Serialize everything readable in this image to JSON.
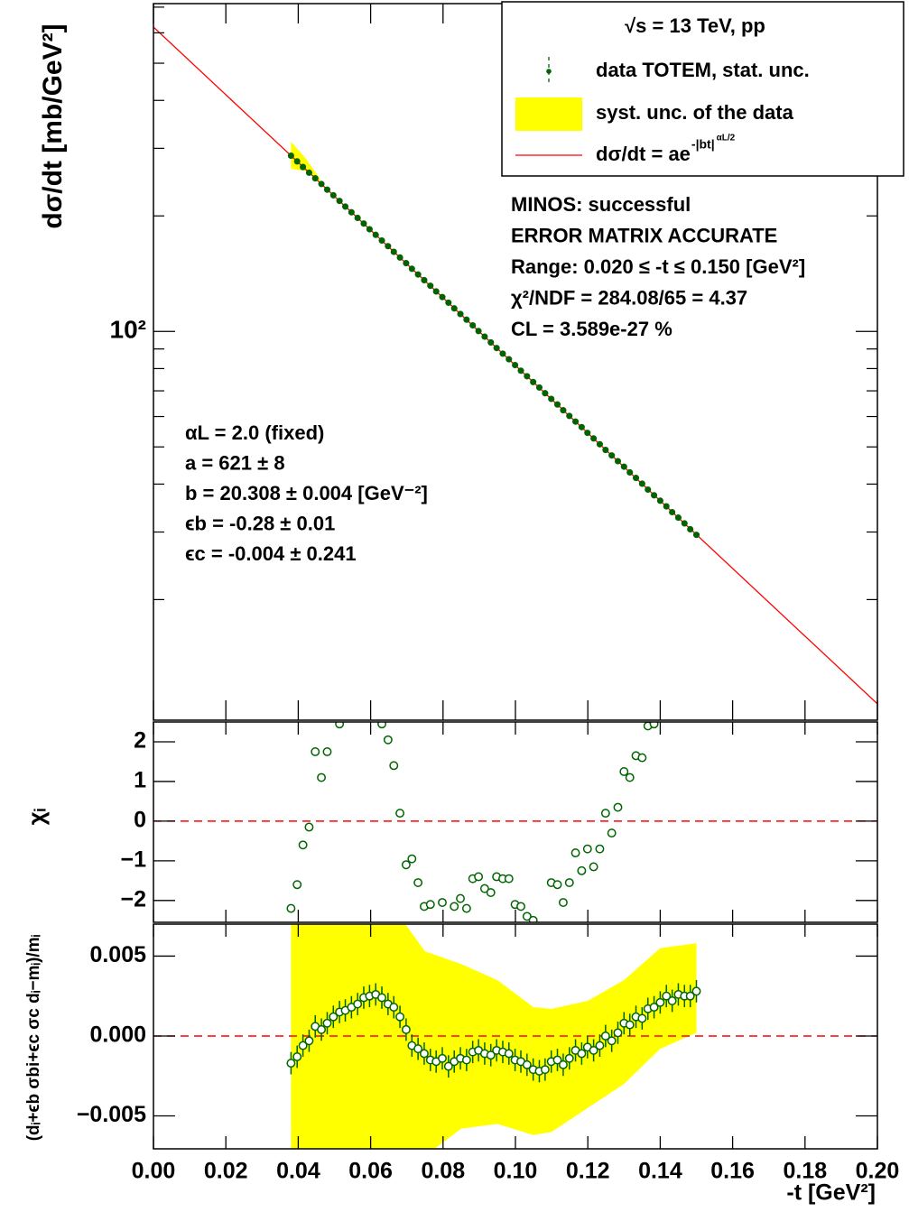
{
  "chart_data": [
    {
      "type": "scatter",
      "ylabel": "dσ/dt [mb/GeV²]",
      "log_y": true,
      "ylim": [
        9.7,
        715
      ],
      "yticks": [
        {
          "value": 100,
          "label": "10²"
        }
      ],
      "yminor": [
        20,
        30,
        40,
        50,
        60,
        70,
        80,
        90,
        200,
        300,
        400,
        500,
        600,
        700
      ],
      "legend": {
        "title": "√s = 13 TeV, pp",
        "position": "upper right"
      },
      "series": [
        {
          "name": "data TOTEM, stat. unc.",
          "type": "scatter",
          "marker": "filled",
          "color": "#006400",
          "x": [
            0.038,
            0.0397,
            0.0413,
            0.043,
            0.0447,
            0.0464,
            0.048,
            0.0497,
            0.0514,
            0.053,
            0.0547,
            0.0564,
            0.0581,
            0.0597,
            0.0614,
            0.0631,
            0.0648,
            0.0664,
            0.0681,
            0.0698,
            0.0714,
            0.0731,
            0.0748,
            0.0765,
            0.0781,
            0.0798,
            0.0815,
            0.0831,
            0.0848,
            0.0865,
            0.0882,
            0.0898,
            0.0915,
            0.0932,
            0.0948,
            0.0965,
            0.0982,
            0.0999,
            0.1015,
            0.1032,
            0.1049,
            0.1066,
            0.1082,
            0.1099,
            0.1116,
            0.1132,
            0.1149,
            0.1166,
            0.1183,
            0.1199,
            0.1216,
            0.1233,
            0.1249,
            0.1266,
            0.1283,
            0.13,
            0.1316,
            0.1333,
            0.135,
            0.1366,
            0.1383,
            0.14,
            0.1417,
            0.1433,
            0.145,
            0.1467,
            0.1483,
            0.15
          ],
          "values": [
            287.0,
            277.4,
            268.2,
            259.2,
            250.6,
            242.2,
            234.1,
            226.3,
            218.8,
            211.5,
            204.4,
            197.6,
            191.0,
            184.6,
            178.5,
            172.5,
            166.8,
            161.2,
            155.8,
            150.6,
            145.6,
            140.7,
            136.0,
            131.5,
            127.1,
            122.9,
            118.8,
            114.8,
            111.0,
            107.3,
            103.7,
            100.2,
            96.9,
            93.6,
            90.5,
            87.5,
            84.6,
            81.7,
            79.0,
            76.4,
            73.8,
            71.4,
            69.0,
            66.7,
            64.5,
            62.3,
            60.2,
            58.2,
            56.3,
            54.4,
            52.6,
            50.8,
            49.1,
            47.5,
            45.9,
            44.4,
            42.9,
            41.5,
            40.1,
            38.7,
            37.4,
            36.2,
            35.0,
            33.8,
            32.7,
            31.6,
            30.5,
            29.5
          ]
        },
        {
          "name": "syst. unc. of the data",
          "type": "band",
          "color": "#ffff00",
          "x": [
            0.038,
            0.042,
            0.046
          ],
          "upper": [
            312,
            283,
            250
          ],
          "lower": [
            265,
            262,
            246
          ]
        },
        {
          "name": "dσ/dt = ae",
          "name_sup": "-|bt|",
          "name_sup2": "αL/2",
          "type": "line",
          "color": "#ff0000",
          "x": [
            0,
            0.2
          ],
          "values": [
            621,
            10.7
          ]
        }
      ],
      "fit_status": [
        "MINOS: successful",
        "ERROR MATRIX ACCURATE",
        "Range: 0.020 ≤ -t ≤ 0.150 [GeV²]",
        "χ²/NDF = 284.08/65 = 4.37",
        "CL = 3.589e-27 %"
      ],
      "parameters": [
        "αL = 2.0 (fixed)",
        "a = 621 ± 8",
        "b = 20.308 ± 0.004 [GeV⁻²]",
        "ϵb = -0.28 ± 0.01",
        "ϵc = -0.004 ± 0.241"
      ]
    },
    {
      "type": "scatter",
      "ylabel": "χᵢ",
      "marker": "open",
      "color": "#006400",
      "ylim": [
        -2.55,
        2.5
      ],
      "yticks": [
        {
          "value": -2,
          "label": "−2"
        },
        {
          "value": -1,
          "label": "−1"
        },
        0,
        1,
        2
      ],
      "reference_line": 0,
      "reference_color": "#ff0000",
      "x": [
        0.038,
        0.0397,
        0.0413,
        0.043,
        0.0447,
        0.0464,
        0.048,
        0.0497,
        0.0514,
        0.053,
        0.0547,
        0.0564,
        0.0581,
        0.0597,
        0.0614,
        0.0631,
        0.0648,
        0.0664,
        0.0681,
        0.0698,
        0.0714,
        0.0731,
        0.0748,
        0.0765,
        0.0781,
        0.0798,
        0.0815,
        0.0831,
        0.0848,
        0.0865,
        0.0882,
        0.0898,
        0.0915,
        0.0932,
        0.0948,
        0.0965,
        0.0982,
        0.0999,
        0.1015,
        0.1032,
        0.1049,
        0.1066,
        0.1082,
        0.1099,
        0.1116,
        0.1132,
        0.1149,
        0.1166,
        0.1183,
        0.1199,
        0.1216,
        0.1233,
        0.1249,
        0.1266,
        0.1283,
        0.13,
        0.1316,
        0.1333,
        0.135,
        0.1366,
        0.1383,
        0.14,
        0.1417,
        0.1433,
        0.145,
        0.1467,
        0.1483,
        0.15
      ],
      "values": [
        -2.2,
        -1.6,
        -0.6,
        -0.15,
        1.75,
        1.1,
        1.75,
        null,
        2.45,
        null,
        null,
        null,
        null,
        null,
        null,
        2.45,
        2.05,
        1.4,
        0.2,
        -1.1,
        -0.95,
        -1.55,
        -2.15,
        -2.1,
        null,
        -2.05,
        null,
        -2.15,
        -1.95,
        -2.2,
        -1.45,
        -1.4,
        -1.7,
        -1.8,
        -1.4,
        -1.45,
        -1.45,
        -2.1,
        -2.15,
        -2.4,
        -2.5,
        null,
        null,
        -1.55,
        -1.6,
        -2.05,
        -1.55,
        -0.8,
        -1.25,
        -0.7,
        -1.15,
        -0.7,
        0.2,
        -0.3,
        0.35,
        1.25,
        1.1,
        1.65,
        1.6,
        2.4,
        2.45,
        null,
        null,
        null,
        null,
        null,
        null,
        null
      ]
    },
    {
      "type": "errorbar",
      "ylabel": "(dᵢ+ϵb σbi+ϵc σc dᵢ−mᵢ)/mᵢ",
      "xlabel": "-t [GeV²]",
      "marker": "open",
      "color": "#006400",
      "xlim": [
        0,
        0.2
      ],
      "xticks": [
        {
          "value": 0,
          "label": "0.00"
        },
        {
          "value": 0.02,
          "label": "0.02"
        },
        {
          "value": 0.04,
          "label": "0.04"
        },
        {
          "value": 0.06,
          "label": "0.06"
        },
        {
          "value": 0.08,
          "label": "0.08"
        },
        {
          "value": 0.1,
          "label": "0.10"
        },
        {
          "value": 0.12,
          "label": "0.12"
        },
        {
          "value": 0.14,
          "label": "0.14"
        },
        {
          "value": 0.16,
          "label": "0.16"
        },
        {
          "value": 0.18,
          "label": "0.18"
        },
        {
          "value": 0.2,
          "label": "0.20"
        }
      ],
      "ylim": [
        -0.00706,
        0.007
      ],
      "yticks": [
        {
          "value": -0.005,
          "label": "−0.005"
        },
        {
          "value": 0,
          "label": "0.000"
        },
        {
          "value": 0.005,
          "label": "0.005"
        }
      ],
      "reference_line": 0,
      "reference_color": "#ff0000",
      "x": [
        0.038,
        0.0397,
        0.0413,
        0.043,
        0.0447,
        0.0464,
        0.048,
        0.0497,
        0.0514,
        0.053,
        0.0547,
        0.0564,
        0.0581,
        0.0597,
        0.0614,
        0.0631,
        0.0648,
        0.0664,
        0.0681,
        0.0698,
        0.0714,
        0.0731,
        0.0748,
        0.0765,
        0.0781,
        0.0798,
        0.0815,
        0.0831,
        0.0848,
        0.0865,
        0.0882,
        0.0898,
        0.0915,
        0.0932,
        0.0948,
        0.0965,
        0.0982,
        0.0999,
        0.1015,
        0.1032,
        0.1049,
        0.1066,
        0.1082,
        0.1099,
        0.1116,
        0.1132,
        0.1149,
        0.1166,
        0.1183,
        0.1199,
        0.1216,
        0.1233,
        0.1249,
        0.1266,
        0.1283,
        0.13,
        0.1316,
        0.1333,
        0.135,
        0.1366,
        0.1383,
        0.14,
        0.1417,
        0.1433,
        0.145,
        0.1467,
        0.1483,
        0.15
      ],
      "values": [
        -0.0017,
        -0.0013,
        -0.0006,
        -0.0003,
        0.0006,
        0.0004,
        0.0008,
        0.0012,
        0.0015,
        0.0016,
        0.0018,
        0.002,
        0.0024,
        0.0025,
        0.0026,
        0.0024,
        0.002,
        0.0018,
        0.0012,
        0.0004,
        -0.0006,
        -0.0008,
        -0.0011,
        -0.0015,
        -0.0016,
        -0.0014,
        -0.0019,
        -0.0016,
        -0.0014,
        -0.0015,
        -0.001,
        -0.0009,
        -0.0011,
        -0.0012,
        -0.0009,
        -0.001,
        -0.0011,
        -0.0015,
        -0.0016,
        -0.0018,
        -0.0021,
        -0.0022,
        -0.0021,
        -0.0016,
        -0.0015,
        -0.0018,
        -0.0014,
        -0.0009,
        -0.0011,
        -0.0007,
        -0.0009,
        -0.0006,
        0.0,
        -0.0003,
        0.0002,
        0.0008,
        0.0007,
        0.0012,
        0.0011,
        0.0017,
        0.0018,
        0.0021,
        0.0025,
        0.0022,
        0.0026,
        0.0025,
        0.0025,
        0.0028
      ],
      "errors": [
        0.0007,
        0.0007,
        0.0007,
        0.0007,
        0.0007,
        0.0007,
        0.0007,
        0.0007,
        0.0007,
        0.0007,
        0.0007,
        0.0007,
        0.0007,
        0.0007,
        0.0007,
        0.0007,
        0.0007,
        0.0007,
        0.0007,
        0.0007,
        0.0007,
        0.0007,
        0.0007,
        0.0007,
        0.0007,
        0.0007,
        0.0007,
        0.0007,
        0.0007,
        0.0007,
        0.0007,
        0.0007,
        0.0007,
        0.0007,
        0.0007,
        0.0007,
        0.0007,
        0.0007,
        0.0007,
        0.0007,
        0.0007,
        0.0007,
        0.0007,
        0.0007,
        0.0007,
        0.0007,
        0.0007,
        0.0007,
        0.0007,
        0.0007,
        0.0007,
        0.0007,
        0.0007,
        0.0007,
        0.0007,
        0.0007,
        0.0007,
        0.0007,
        0.0007,
        0.0007,
        0.0007,
        0.0007,
        0.0007,
        0.0007,
        0.0007,
        0.0007,
        0.0007,
        0.0007
      ],
      "band": {
        "color": "#ffff00",
        "x": [
          0.038,
          0.062,
          0.068,
          0.075,
          0.085,
          0.095,
          0.105,
          0.11,
          0.12,
          0.13,
          0.14,
          0.15
        ],
        "upper": [
          0.0075,
          0.0075,
          0.0075,
          0.0053,
          0.0045,
          0.0035,
          0.0018,
          0.0017,
          0.0022,
          0.0035,
          0.0055,
          0.0058
        ],
        "lower": [
          -0.0075,
          -0.0075,
          -0.0075,
          -0.0075,
          -0.0058,
          -0.0055,
          -0.0062,
          -0.006,
          -0.0045,
          -0.003,
          -0.0008,
          0.0002
        ]
      }
    }
  ]
}
